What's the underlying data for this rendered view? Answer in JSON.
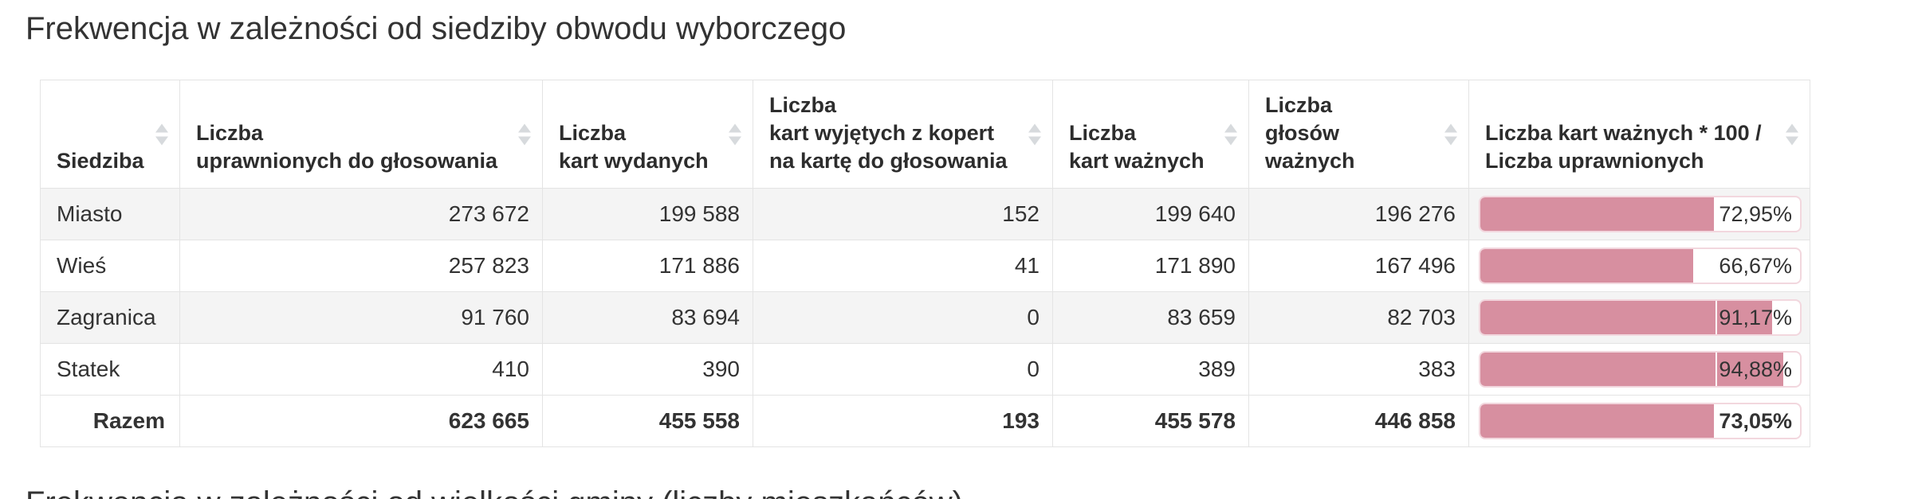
{
  "page": {
    "title": "Frekwencja w zależności od siedziby obwodu wyborczego",
    "next_section_title": "Frekwencja w zależności od wielkości gminy (liczby mieszkańców)"
  },
  "colors": {
    "bar_fill": "#d78fa0",
    "bar_track_border": "#f2d7de",
    "row_stripe": "#f4f4f4",
    "sort_icon": "#d7dadd"
  },
  "table": {
    "columns": [
      {
        "key": "siedziba",
        "lines": [
          "Siedziba"
        ],
        "sortable": true
      },
      {
        "key": "uprawnieni",
        "lines": [
          "Liczba",
          "uprawnionych do głosowania"
        ],
        "sortable": true
      },
      {
        "key": "karty-wydane",
        "lines": [
          "Liczba",
          "kart wydanych"
        ],
        "sortable": true
      },
      {
        "key": "karty-z-kopert",
        "lines": [
          "Liczba",
          "kart wyjętych z kopert",
          "na kartę do głosowania"
        ],
        "sortable": true
      },
      {
        "key": "karty-wazne",
        "lines": [
          "Liczba",
          "kart ważnych"
        ],
        "sortable": true
      },
      {
        "key": "glosy-wazne",
        "lines": [
          "Liczba",
          "głosów ważnych"
        ],
        "sortable": true
      },
      {
        "key": "frekwencja",
        "lines": [
          "Liczba kart ważnych * 100 /",
          "Liczba uprawnionych"
        ],
        "sortable": true
      }
    ],
    "rows": [
      {
        "name": "Miasto",
        "values": [
          "273 672",
          "199 588",
          "152",
          "199 640",
          "196 276"
        ],
        "turnout": {
          "label": "72,95%",
          "pct": 72.95
        },
        "total": false
      },
      {
        "name": "Wieś",
        "values": [
          "257 823",
          "171 886",
          "41",
          "171 890",
          "167 496"
        ],
        "turnout": {
          "label": "66,67%",
          "pct": 66.67
        },
        "total": false
      },
      {
        "name": "Zagranica",
        "values": [
          "91 760",
          "83 694",
          "0",
          "83 659",
          "82 703"
        ],
        "turnout": {
          "label": "91,17%",
          "pct": 91.17
        },
        "total": false
      },
      {
        "name": "Statek",
        "values": [
          "410",
          "390",
          "0",
          "389",
          "383"
        ],
        "turnout": {
          "label": "94,88%",
          "pct": 94.88
        },
        "total": false
      },
      {
        "name": "Razem",
        "values": [
          "623 665",
          "455 558",
          "193",
          "455 578",
          "446 858"
        ],
        "turnout": {
          "label": "73,05%",
          "pct": 73.05
        },
        "total": true
      }
    ]
  }
}
